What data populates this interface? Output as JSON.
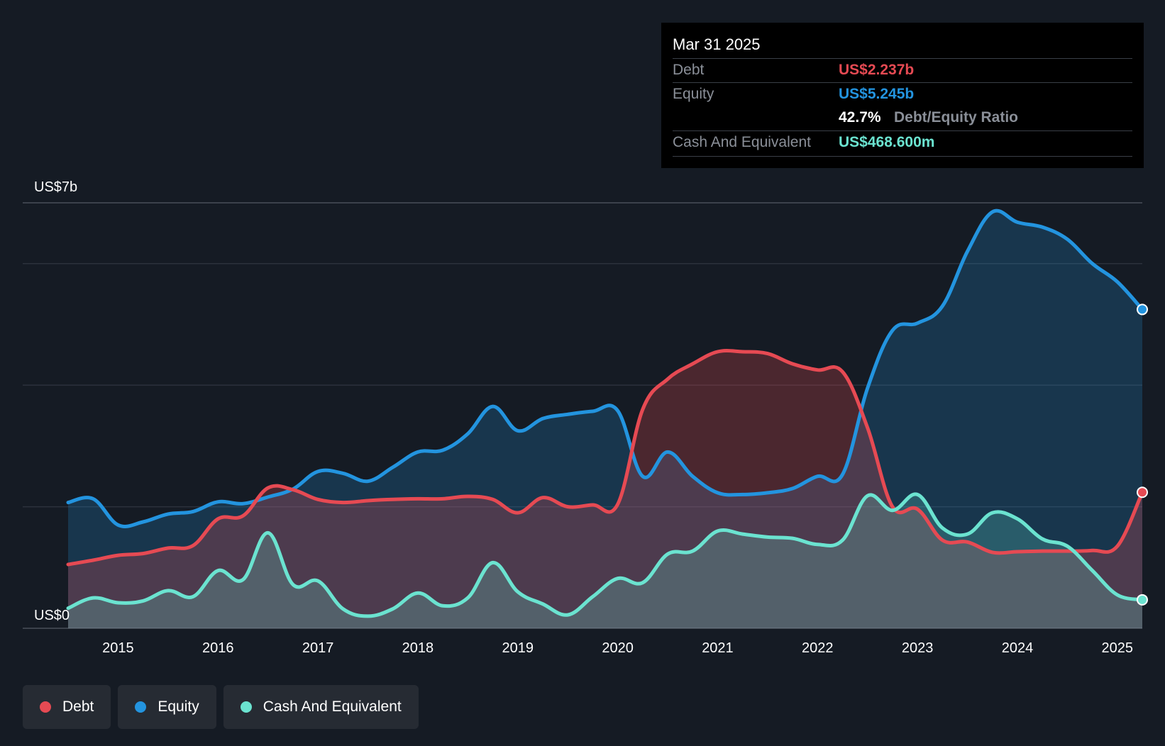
{
  "tooltip": {
    "date": "Mar 31 2025",
    "debt_label": "Debt",
    "debt_value": "US$2.237b",
    "equity_label": "Equity",
    "equity_value": "US$5.245b",
    "ratio_value": "42.7%",
    "ratio_label": "Debt/Equity Ratio",
    "cash_label": "Cash And Equivalent",
    "cash_value": "US$468.600m"
  },
  "legend": {
    "debt": "Debt",
    "equity": "Equity",
    "cash": "Cash And Equivalent"
  },
  "colors": {
    "debt": "#e64a53",
    "equity": "#2394df",
    "cash": "#6be3d0",
    "background": "#151b24"
  },
  "chart_data": {
    "type": "area",
    "title": "",
    "ylim": [
      0,
      7
    ],
    "xlim": [
      2014.5,
      2025.25
    ],
    "y_unit": "US$b",
    "y_tick_labels": [
      {
        "value": 7,
        "label": "US$7b"
      },
      {
        "value": 0,
        "label": "US$0"
      }
    ],
    "gridlines": [
      7,
      6,
      4,
      2,
      0
    ],
    "x_ticks": [
      {
        "value": 2015,
        "label": "2015"
      },
      {
        "value": 2016,
        "label": "2016"
      },
      {
        "value": 2017,
        "label": "2017"
      },
      {
        "value": 2018,
        "label": "2018"
      },
      {
        "value": 2019,
        "label": "2019"
      },
      {
        "value": 2020,
        "label": "2020"
      },
      {
        "value": 2021,
        "label": "2021"
      },
      {
        "value": 2022,
        "label": "2022"
      },
      {
        "value": 2023,
        "label": "2023"
      },
      {
        "value": 2024,
        "label": "2024"
      },
      {
        "value": 2025,
        "label": "2025"
      }
    ],
    "series": [
      {
        "name": "Equity",
        "key": "equity",
        "points": [
          [
            2014.5,
            2.07
          ],
          [
            2014.75,
            2.13
          ],
          [
            2015.0,
            1.7
          ],
          [
            2015.25,
            1.75
          ],
          [
            2015.5,
            1.88
          ],
          [
            2015.75,
            1.92
          ],
          [
            2016.0,
            2.08
          ],
          [
            2016.25,
            2.05
          ],
          [
            2016.5,
            2.16
          ],
          [
            2016.75,
            2.29
          ],
          [
            2017.0,
            2.58
          ],
          [
            2017.25,
            2.55
          ],
          [
            2017.5,
            2.42
          ],
          [
            2017.75,
            2.65
          ],
          [
            2018.0,
            2.9
          ],
          [
            2018.25,
            2.93
          ],
          [
            2018.5,
            3.2
          ],
          [
            2018.75,
            3.65
          ],
          [
            2019.0,
            3.25
          ],
          [
            2019.25,
            3.45
          ],
          [
            2019.5,
            3.52
          ],
          [
            2019.75,
            3.57
          ],
          [
            2020.0,
            3.58
          ],
          [
            2020.25,
            2.5
          ],
          [
            2020.5,
            2.9
          ],
          [
            2020.75,
            2.5
          ],
          [
            2021.0,
            2.23
          ],
          [
            2021.25,
            2.2
          ],
          [
            2021.5,
            2.23
          ],
          [
            2021.75,
            2.3
          ],
          [
            2022.0,
            2.5
          ],
          [
            2022.25,
            2.53
          ],
          [
            2022.5,
            3.95
          ],
          [
            2022.75,
            4.9
          ],
          [
            2023.0,
            5.02
          ],
          [
            2023.25,
            5.3
          ],
          [
            2023.5,
            6.2
          ],
          [
            2023.75,
            6.85
          ],
          [
            2024.0,
            6.68
          ],
          [
            2024.25,
            6.6
          ],
          [
            2024.5,
            6.4
          ],
          [
            2024.75,
            6.0
          ],
          [
            2025.0,
            5.7
          ],
          [
            2025.25,
            5.245
          ]
        ]
      },
      {
        "name": "Debt",
        "key": "debt",
        "points": [
          [
            2014.5,
            1.05
          ],
          [
            2014.75,
            1.12
          ],
          [
            2015.0,
            1.2
          ],
          [
            2015.25,
            1.23
          ],
          [
            2015.5,
            1.32
          ],
          [
            2015.75,
            1.36
          ],
          [
            2016.0,
            1.8
          ],
          [
            2016.25,
            1.85
          ],
          [
            2016.5,
            2.31
          ],
          [
            2016.75,
            2.28
          ],
          [
            2017.0,
            2.12
          ],
          [
            2017.25,
            2.07
          ],
          [
            2017.5,
            2.1
          ],
          [
            2017.75,
            2.12
          ],
          [
            2018.0,
            2.13
          ],
          [
            2018.25,
            2.13
          ],
          [
            2018.5,
            2.17
          ],
          [
            2018.75,
            2.12
          ],
          [
            2019.0,
            1.9
          ],
          [
            2019.25,
            2.15
          ],
          [
            2019.5,
            2.0
          ],
          [
            2019.75,
            2.03
          ],
          [
            2020.0,
            2.04
          ],
          [
            2020.25,
            3.6
          ],
          [
            2020.5,
            4.1
          ],
          [
            2020.75,
            4.35
          ],
          [
            2021.0,
            4.55
          ],
          [
            2021.25,
            4.55
          ],
          [
            2021.5,
            4.52
          ],
          [
            2021.75,
            4.35
          ],
          [
            2022.0,
            4.25
          ],
          [
            2022.25,
            4.22
          ],
          [
            2022.5,
            3.3
          ],
          [
            2022.75,
            2.0
          ],
          [
            2023.0,
            1.96
          ],
          [
            2023.25,
            1.45
          ],
          [
            2023.5,
            1.42
          ],
          [
            2023.75,
            1.25
          ],
          [
            2024.0,
            1.26
          ],
          [
            2024.25,
            1.27
          ],
          [
            2024.5,
            1.27
          ],
          [
            2024.75,
            1.28
          ],
          [
            2025.0,
            1.35
          ],
          [
            2025.25,
            2.237
          ]
        ]
      },
      {
        "name": "Cash And Equivalent",
        "key": "cash",
        "points": [
          [
            2014.5,
            0.33
          ],
          [
            2014.75,
            0.5
          ],
          [
            2015.0,
            0.42
          ],
          [
            2015.25,
            0.45
          ],
          [
            2015.5,
            0.62
          ],
          [
            2015.75,
            0.52
          ],
          [
            2016.0,
            0.95
          ],
          [
            2016.25,
            0.8
          ],
          [
            2016.5,
            1.57
          ],
          [
            2016.75,
            0.72
          ],
          [
            2017.0,
            0.78
          ],
          [
            2017.25,
            0.32
          ],
          [
            2017.5,
            0.2
          ],
          [
            2017.75,
            0.32
          ],
          [
            2018.0,
            0.58
          ],
          [
            2018.25,
            0.37
          ],
          [
            2018.5,
            0.5
          ],
          [
            2018.75,
            1.08
          ],
          [
            2019.0,
            0.6
          ],
          [
            2019.25,
            0.4
          ],
          [
            2019.5,
            0.22
          ],
          [
            2019.75,
            0.52
          ],
          [
            2020.0,
            0.82
          ],
          [
            2020.25,
            0.75
          ],
          [
            2020.5,
            1.22
          ],
          [
            2020.75,
            1.27
          ],
          [
            2021.0,
            1.6
          ],
          [
            2021.25,
            1.55
          ],
          [
            2021.5,
            1.5
          ],
          [
            2021.75,
            1.48
          ],
          [
            2022.0,
            1.38
          ],
          [
            2022.25,
            1.45
          ],
          [
            2022.5,
            2.18
          ],
          [
            2022.75,
            1.94
          ],
          [
            2023.0,
            2.2
          ],
          [
            2023.25,
            1.65
          ],
          [
            2023.5,
            1.55
          ],
          [
            2023.75,
            1.9
          ],
          [
            2024.0,
            1.8
          ],
          [
            2024.25,
            1.47
          ],
          [
            2024.5,
            1.35
          ],
          [
            2024.75,
            0.95
          ],
          [
            2025.0,
            0.55
          ],
          [
            2025.25,
            0.4686
          ]
        ]
      }
    ]
  }
}
